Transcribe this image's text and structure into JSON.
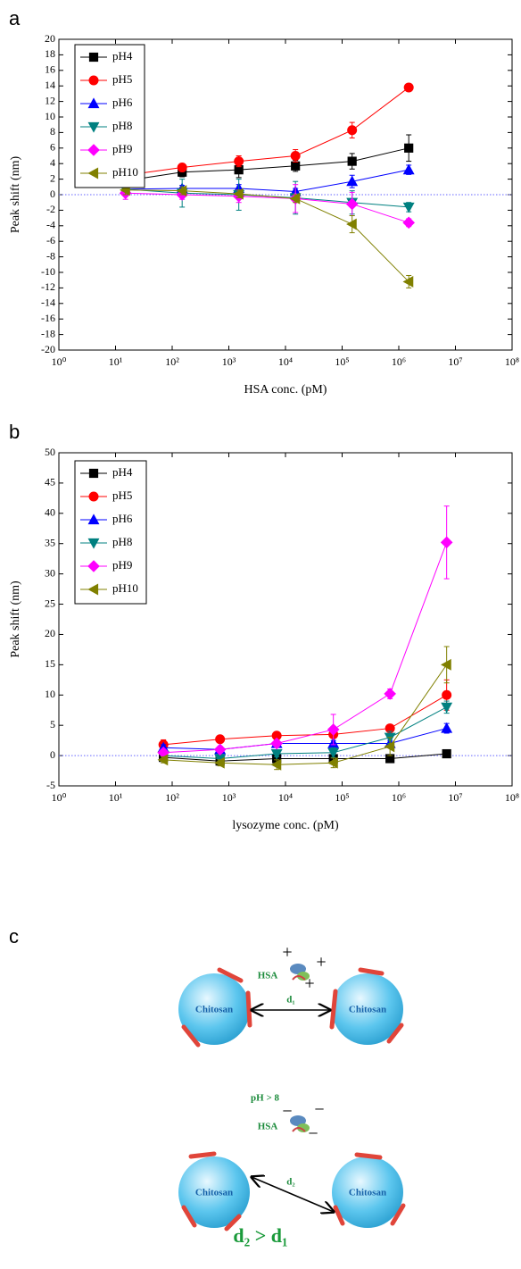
{
  "chart_data": [
    {
      "type": "line",
      "panel": "a",
      "xlabel": "HSA conc. (pM)",
      "ylabel": "Peak shift (nm)",
      "xscale": "log",
      "xlim": [
        1,
        100000000
      ],
      "xticks": [
        {
          "value": 1,
          "label": "10⁰"
        },
        {
          "value": 10,
          "label": "10¹"
        },
        {
          "value": 100,
          "label": "10²"
        },
        {
          "value": 1000,
          "label": "10³"
        },
        {
          "value": 10000,
          "label": "10⁴"
        },
        {
          "value": 100000,
          "label": "10⁵"
        },
        {
          "value": 1000000,
          "label": "10⁶"
        },
        {
          "value": 10000000,
          "label": "10⁷"
        },
        {
          "value": 100000000,
          "label": "10⁸"
        }
      ],
      "ylim": [
        -20,
        20
      ],
      "yticks": [
        -20,
        -18,
        -16,
        -14,
        -12,
        -10,
        -8,
        -6,
        -4,
        -2,
        0,
        2,
        4,
        6,
        8,
        10,
        12,
        14,
        16,
        18,
        20
      ],
      "hline": 0,
      "hline_color": "#6666ff",
      "legend": "upper left",
      "grid": false,
      "x": [
        15,
        150,
        1500,
        15000,
        150000,
        1500000
      ],
      "series": [
        {
          "name": "pH4",
          "color": "#000000",
          "marker": "square",
          "values": [
            1.8,
            2.9,
            3.2,
            3.7,
            4.3,
            6.0
          ],
          "errors": [
            0.6,
            0.6,
            1.0,
            0.7,
            1.0,
            1.7
          ]
        },
        {
          "name": "pH5",
          "color": "#ff0000",
          "marker": "circle",
          "values": [
            2.5,
            3.5,
            4.3,
            5.0,
            8.3,
            13.8
          ],
          "errors": [
            0.8,
            0.4,
            0.7,
            0.8,
            1.0,
            0.3
          ]
        },
        {
          "name": "pH6",
          "color": "#0000ff",
          "marker": "triangle-up",
          "values": [
            0.7,
            0.8,
            0.8,
            0.4,
            1.7,
            3.2
          ],
          "errors": [
            0.5,
            0.4,
            0.5,
            0.4,
            0.8,
            0.6
          ]
        },
        {
          "name": "pH8",
          "color": "#008080",
          "marker": "triangle-down",
          "values": [
            0.7,
            0.2,
            0.0,
            -0.4,
            -1.0,
            -1.6
          ],
          "errors": [
            0.5,
            1.8,
            2.0,
            2.1,
            1.5,
            0.6
          ]
        },
        {
          "name": "pH9",
          "color": "#ff00ff",
          "marker": "diamond",
          "values": [
            0.2,
            0.0,
            -0.2,
            -0.5,
            -1.2,
            -3.6
          ],
          "errors": [
            0.8,
            0.6,
            0.8,
            1.8,
            1.5,
            0.5
          ]
        },
        {
          "name": "pH10",
          "color": "#808000",
          "marker": "triangle-left",
          "values": [
            0.6,
            0.5,
            0.1,
            -0.5,
            -3.8,
            -11.2
          ],
          "errors": [
            0.6,
            0.5,
            0.5,
            0.5,
            1.1,
            0.8
          ]
        }
      ]
    },
    {
      "type": "line",
      "panel": "b",
      "xlabel": "lysozyme conc. (pM)",
      "ylabel": "Peak shift (nm)",
      "xscale": "log",
      "xlim": [
        1,
        100000000
      ],
      "xticks": [
        {
          "value": 1,
          "label": "10⁰"
        },
        {
          "value": 10,
          "label": "10¹"
        },
        {
          "value": 100,
          "label": "10²"
        },
        {
          "value": 1000,
          "label": "10³"
        },
        {
          "value": 10000,
          "label": "10⁴"
        },
        {
          "value": 100000,
          "label": "10⁵"
        },
        {
          "value": 1000000,
          "label": "10⁶"
        },
        {
          "value": 10000000,
          "label": "10⁷"
        },
        {
          "value": 100000000,
          "label": "10⁸"
        }
      ],
      "ylim": [
        -5,
        50
      ],
      "yticks": [
        -5,
        0,
        5,
        10,
        15,
        20,
        25,
        30,
        35,
        40,
        45,
        50
      ],
      "hline": 0,
      "hline_color": "#6666ff",
      "legend": "upper left",
      "grid": false,
      "x": [
        70,
        700,
        7000,
        70000,
        700000,
        7000000
      ],
      "series": [
        {
          "name": "pH4",
          "color": "#000000",
          "marker": "square",
          "values": [
            -0.3,
            -0.9,
            -0.5,
            -0.5,
            -0.5,
            0.3
          ],
          "errors": [
            0.5,
            0.5,
            0.5,
            0.5,
            0.5,
            0.3
          ]
        },
        {
          "name": "pH5",
          "color": "#ff0000",
          "marker": "circle",
          "values": [
            1.8,
            2.7,
            3.3,
            3.5,
            4.5,
            10.0
          ],
          "errors": [
            0.8,
            0.4,
            0.5,
            0.5,
            0.5,
            2.5
          ]
        },
        {
          "name": "pH6",
          "color": "#0000ff",
          "marker": "triangle-up",
          "values": [
            1.3,
            1.0,
            2.0,
            2.0,
            2.0,
            4.5
          ],
          "errors": [
            0.5,
            0.5,
            0.5,
            0.5,
            0.5,
            0.8
          ]
        },
        {
          "name": "pH8",
          "color": "#008080",
          "marker": "triangle-down",
          "values": [
            0.0,
            -0.5,
            0.3,
            0.5,
            3.0,
            8.0
          ],
          "errors": [
            0.5,
            0.5,
            0.5,
            0.8,
            1.0,
            1.0
          ]
        },
        {
          "name": "pH9",
          "color": "#ff00ff",
          "marker": "diamond",
          "values": [
            0.5,
            1.0,
            2.0,
            4.3,
            10.2,
            35.2
          ],
          "errors": [
            0.5,
            0.5,
            0.5,
            2.5,
            0.8,
            6.0
          ]
        },
        {
          "name": "pH10",
          "color": "#808000",
          "marker": "triangle-left",
          "values": [
            -0.7,
            -1.2,
            -1.5,
            -1.2,
            1.5,
            15.0
          ],
          "errors": [
            0.5,
            0.5,
            0.8,
            0.8,
            1.5,
            3.0
          ]
        }
      ]
    }
  ],
  "diagram": {
    "panel": "c",
    "top": {
      "protein": "HSA",
      "charges": [
        "+",
        "+",
        "+"
      ],
      "particles": [
        "Chitosan",
        "Chitosan"
      ],
      "distance": "d₁"
    },
    "bottom": {
      "condition": "pH > 8",
      "protein": "HSA",
      "charges": [
        "−",
        "−",
        "−"
      ],
      "particles": [
        "Chitosan",
        "Chitosan"
      ],
      "distance": "d₂"
    },
    "conclusion": "d₂ > d₁"
  }
}
